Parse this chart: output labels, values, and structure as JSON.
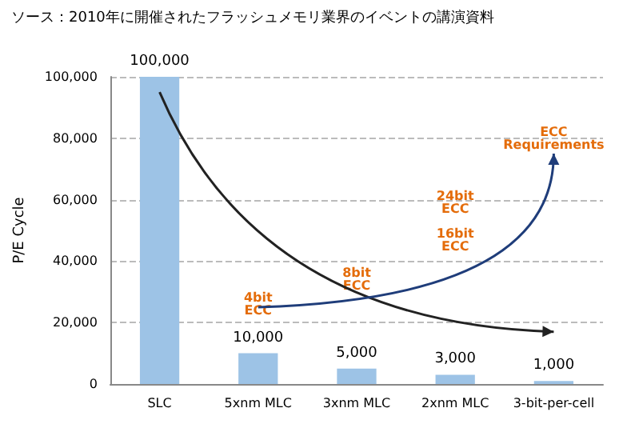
{
  "chart_data": {
    "type": "bar",
    "title": "ソース：2010年に開催されたフラッシュメモリ業界のイベントの講演資料",
    "ylabel": "P/E Cycle",
    "categories": [
      "SLC",
      "5xnm MLC",
      "3xnm MLC",
      "2xnm MLC",
      "3-bit-per-cell"
    ],
    "values": [
      100000,
      10000,
      5000,
      3000,
      1000
    ],
    "color": "#9dc3e6",
    "value_labels": [
      "100,000",
      "10,000",
      "5,000",
      "3,000",
      "1,000"
    ],
    "ylim": [
      0,
      100000
    ],
    "yticks": [
      0,
      {
        "value": 20000,
        "label": "20,000"
      },
      {
        "value": 40000,
        "label": "40,000"
      },
      {
        "value": 60000,
        "label": "60,000"
      },
      {
        "value": 80000,
        "label": "80,000"
      },
      {
        "value": 100000,
        "label": "100,000"
      }
    ],
    "grid": "y",
    "annotations": [
      "4bit\nECC",
      "8bit\nECC",
      "16bit\nECC",
      "24bit\nECC",
      "ECC\nRequirements"
    ]
  }
}
